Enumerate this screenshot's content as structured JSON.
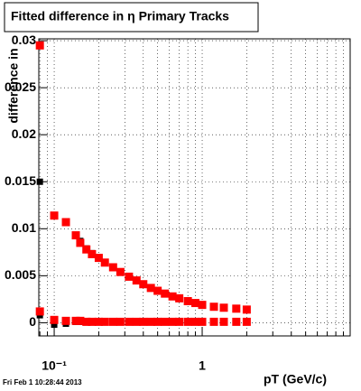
{
  "chart_data": {
    "type": "scatter",
    "title": "Fitted difference in η  Primary Tracks",
    "y_label": "difference in",
    "x_label": "pT (GeV/c)",
    "footer": "Fri Feb  1 10:28:44 2013",
    "log_x": true,
    "grid": true,
    "x": [
      0.08,
      0.1,
      0.12,
      0.14,
      0.15,
      0.165,
      0.18,
      0.2,
      0.22,
      0.25,
      0.28,
      0.32,
      0.36,
      0.4,
      0.45,
      0.5,
      0.56,
      0.63,
      0.7,
      0.8,
      0.9,
      1.0,
      1.2,
      1.4,
      1.7,
      2.0
    ],
    "series": [
      {
        "color": "#000000",
        "marker_size": 7,
        "values": [
          0.015,
          0.0114,
          0.0107,
          0.0093,
          0.0087,
          0.0079,
          0.0074,
          0.0069,
          0.0064,
          0.0059,
          0.0054,
          0.0049,
          0.0045,
          0.0041,
          0.0037,
          0.0034,
          0.0031,
          0.0028,
          0.0026,
          0.0023,
          0.0021,
          0.0019,
          0.0017,
          0.0016,
          0.0015,
          0.0014
        ]
      },
      {
        "color": "#000000",
        "marker_size": 7,
        "values": [
          0.0008,
          -0.0002,
          -0.0001,
          0.0001,
          0.0001,
          0.0001,
          0.0001,
          0.0001,
          0.0001,
          0.0001,
          0.0001,
          0.0001,
          0.0001,
          0.0001,
          0.0001,
          0.0001,
          0.0001,
          0.0001,
          0.0001,
          0.0001,
          0.0001,
          0.0001,
          0.0001,
          0.0001,
          0.0001,
          0.0001
        ]
      },
      {
        "color": "#ff0000",
        "marker_size": 9,
        "values": [
          0.0295,
          0.0114,
          0.0107,
          0.0093,
          0.0085,
          0.0078,
          0.0073,
          0.0069,
          0.0064,
          0.0059,
          0.0054,
          0.0049,
          0.0045,
          0.0041,
          0.0037,
          0.0034,
          0.0031,
          0.0028,
          0.0026,
          0.0023,
          0.0021,
          0.0019,
          0.0017,
          0.0016,
          0.0015,
          0.0014
        ]
      },
      {
        "color": "#ff0000",
        "marker_size": 9,
        "values": [
          0.0012,
          0.0003,
          0.0002,
          0.0002,
          0.0002,
          0.0001,
          0.0001,
          0.0001,
          0.0001,
          0.0001,
          0.0001,
          0.0001,
          0.0001,
          0.0001,
          0.0001,
          0.0001,
          0.0001,
          0.0001,
          0.0001,
          0.0001,
          0.0001,
          0.0001,
          0.0001,
          0.0001,
          0.0001,
          0.0001
        ]
      }
    ],
    "xlim": [
      0.0787,
      10
    ],
    "xticks": [
      {
        "value": 0.1,
        "label": "10⁻¹"
      },
      1
    ],
    "xminor": [
      0.08,
      0.09,
      0.2,
      0.3,
      0.4,
      0.5,
      0.6,
      0.7,
      0.8,
      0.9,
      2,
      3,
      4,
      5,
      6,
      7,
      8,
      9
    ],
    "ylim": [
      -0.0014,
      0.0302
    ],
    "yticks": [
      0,
      0.005,
      0.01,
      0.015,
      0.02,
      0.025,
      0.03
    ]
  }
}
